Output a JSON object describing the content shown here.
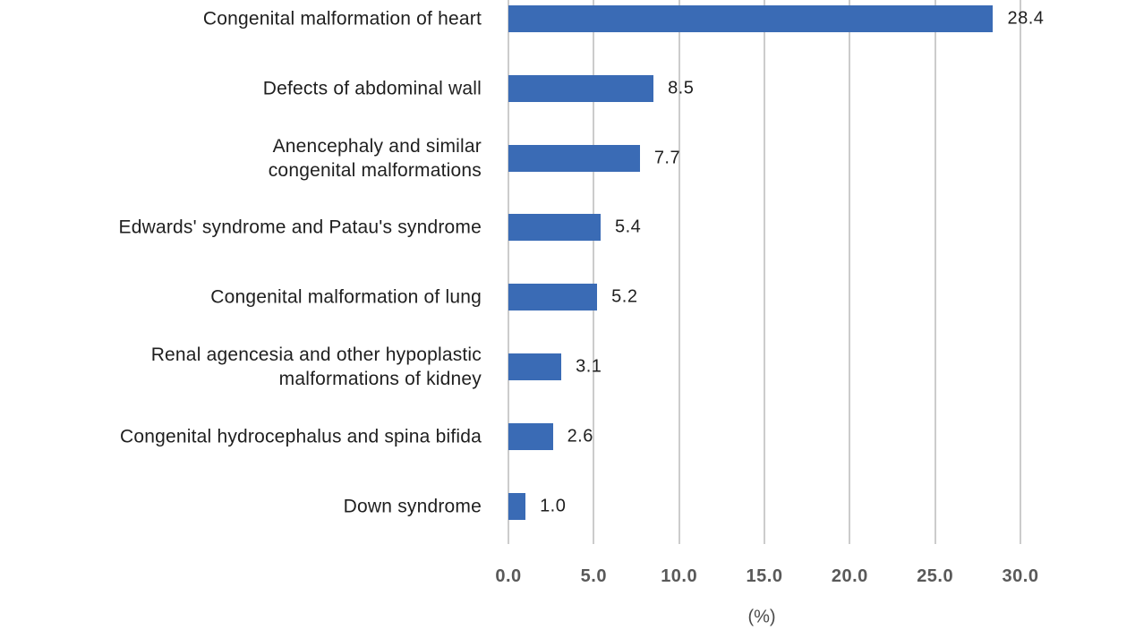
{
  "chart_data": {
    "type": "bar",
    "orientation": "horizontal",
    "categories": [
      "Congenital malformation of heart",
      "Defects of abdominal wall",
      "Anencephaly and similar\ncongenital malformations",
      "Edwards' syndrome and Patau's syndrome",
      "Congenital malformation of lung",
      "Renal agencesia and other hypoplastic\nmalformations of kidney",
      "Congenital hydrocephalus and spina bifida",
      "Down syndrome"
    ],
    "values": [
      28.4,
      8.5,
      7.7,
      5.4,
      5.2,
      3.1,
      2.6,
      1.0
    ],
    "value_labels": [
      "28.4",
      "8.5",
      "7.7",
      "5.4",
      "5.2",
      "3.1",
      "2.6",
      "1.0"
    ],
    "xlabel": "(%)",
    "x_ticks": [
      "0.0",
      "5.0",
      "10.0",
      "15.0",
      "20.0",
      "25.0",
      "30.0"
    ],
    "x_tick_values": [
      0,
      5,
      10,
      15,
      20,
      25,
      30
    ],
    "xlim": [
      0,
      30
    ],
    "grid": "vertical",
    "legend": "none",
    "colors": {
      "bar": "#3a6bb5",
      "gridline": "#cccccc",
      "category_text": "#1f1f1f",
      "value_text": "#1f1f1f",
      "tick_text": "#595959",
      "axis_label_text": "#4a4a4a",
      "background": "#ffffff"
    }
  }
}
